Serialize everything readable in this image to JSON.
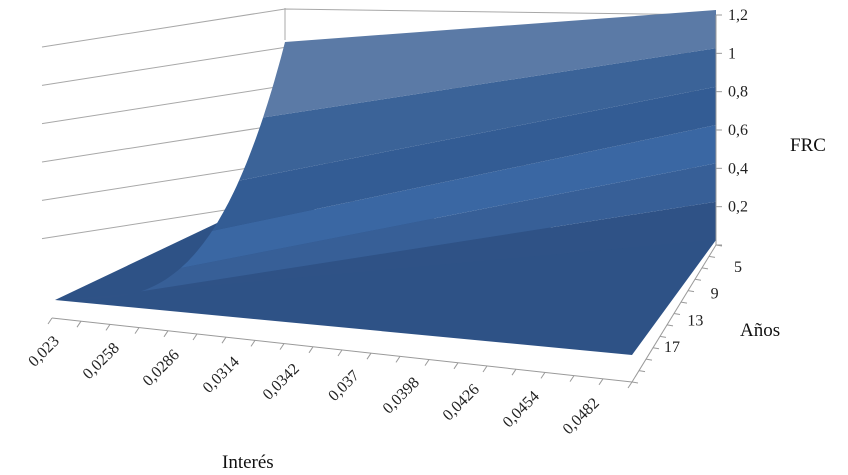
{
  "chart_data": {
    "type": "surface",
    "title": "",
    "xlabel": "Interés",
    "ylabel": "Años",
    "zlabel": "FRC",
    "x_ticks": [
      "0,023",
      "0,0258",
      "0,0286",
      "0,0314",
      "0,0342",
      "0,037",
      "0,0398",
      "0,0426",
      "0,0454",
      "0,0482"
    ],
    "y_ticks": [
      "5",
      "9",
      "13",
      "17"
    ],
    "z_ticks": [
      "0,2",
      "0,4",
      "0,6",
      "0,8",
      "1",
      "1,2"
    ],
    "zlim": [
      0,
      1.2
    ],
    "bands": [
      {
        "range": [
          0,
          0.2
        ],
        "color": "#2f5286"
      },
      {
        "range": [
          0.2,
          0.4
        ],
        "color": "#375f97"
      },
      {
        "range": [
          0.4,
          0.6
        ],
        "color": "#3a67a3"
      },
      {
        "range": [
          0.6,
          0.8
        ],
        "color": "#335c94"
      },
      {
        "range": [
          0.8,
          1.0
        ],
        "color": "#3b6398"
      },
      {
        "range": [
          1.0,
          1.2
        ],
        "color": "#5b7aa6"
      }
    ],
    "series_note_values": {
      "frc_at_min_years": 1.0,
      "frc_at_max_years_low_rate": 0.05
    },
    "grid": true
  }
}
